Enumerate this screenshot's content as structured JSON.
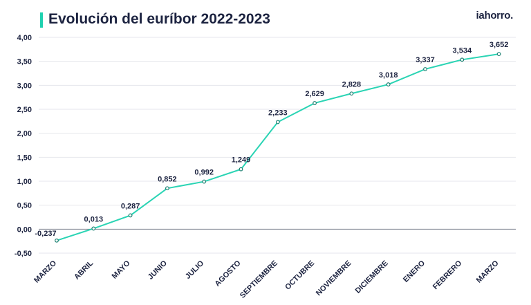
{
  "header": {
    "title": "Evolución del euríbor 2022-2023",
    "brand": "iahorro."
  },
  "colors": {
    "accent": "#1fd1b0",
    "line": "#2ad4b4",
    "text": "#1c2340",
    "grid": "#e4e6ec"
  },
  "chart_data": {
    "type": "line",
    "title": "Evolución del euríbor 2022-2023",
    "xlabel": "",
    "ylabel": "",
    "categories": [
      "MARZO",
      "ABRIL",
      "MAYO",
      "JUNIO",
      "JULIO",
      "AGOSTO",
      "SEPTIEMBRE",
      "OCTUBRE",
      "NOVIEMBRE",
      "DICIEMBRE",
      "ENERO",
      "FEBRERO",
      "MARZO"
    ],
    "values": [
      -0.237,
      0.013,
      0.287,
      0.852,
      0.992,
      1.249,
      2.233,
      2.629,
      2.828,
      3.018,
      3.337,
      3.534,
      3.652
    ],
    "value_labels": [
      "-0,237",
      "0,013",
      "0,287",
      "0,852",
      "0,992",
      "1,249",
      "2,233",
      "2,629",
      "2,828",
      "3,018",
      "3,337",
      "3,534",
      "3,652"
    ],
    "yticks": [
      -0.5,
      0,
      0.5,
      1,
      1.5,
      2,
      2.5,
      3,
      3.5,
      4
    ],
    "ytick_labels": [
      "-0,50",
      "0,00",
      "0,50",
      "1,00",
      "1,50",
      "2,00",
      "2,50",
      "3,00",
      "3,50",
      "4,00"
    ],
    "ylim": [
      -0.5,
      4.0
    ],
    "grid": true,
    "legend": "none"
  }
}
